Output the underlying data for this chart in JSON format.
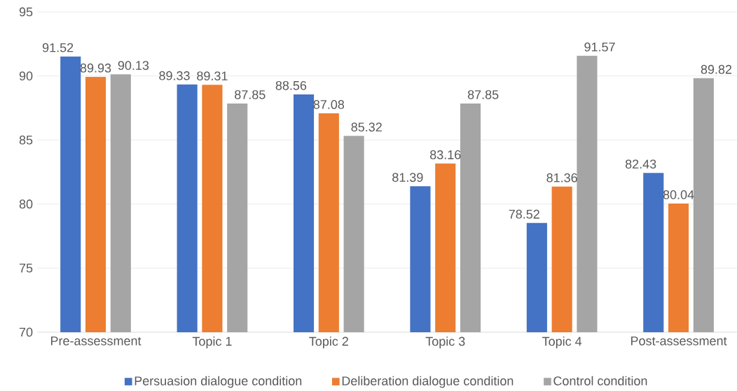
{
  "chart_data": {
    "type": "bar",
    "categories": [
      "Pre-assessment",
      "Topic 1",
      "Topic 2",
      "Topic 3",
      "Topic 4",
      "Post-assessment"
    ],
    "series": [
      {
        "name": "Persuasion dialogue condition",
        "color": "#4472c4",
        "values": [
          91.52,
          89.33,
          88.56,
          81.39,
          78.52,
          82.43
        ]
      },
      {
        "name": "Deliberation dialogue condition",
        "color": "#ed7d31",
        "values": [
          89.93,
          89.31,
          87.08,
          83.16,
          81.36,
          80.04
        ]
      },
      {
        "name": "Control condition",
        "color": "#a5a5a5",
        "values": [
          90.13,
          87.85,
          85.32,
          87.85,
          91.57,
          89.82
        ]
      }
    ],
    "ylim": [
      70,
      95
    ],
    "yticks": [
      70,
      75,
      80,
      85,
      90,
      95
    ],
    "grid": "y",
    "legend": "bottom",
    "data_labels": true
  }
}
